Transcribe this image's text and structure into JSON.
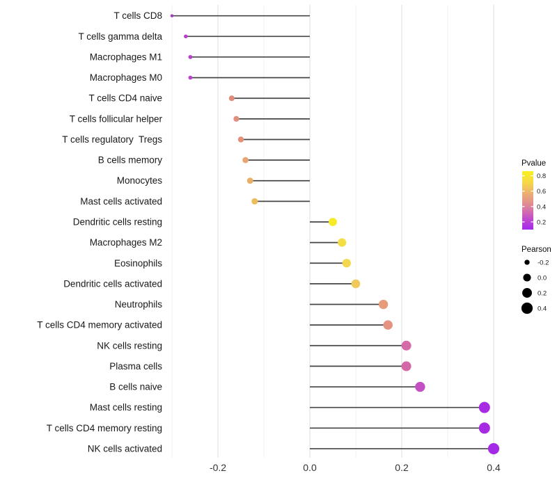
{
  "chart_data": {
    "type": "lollipop",
    "title": "",
    "xlabel": "",
    "ylabel": "",
    "xlim": [
      -0.31,
      0.43
    ],
    "grid": "on",
    "x_major_ticks": {
      "labels": [
        "-0.2",
        "0.0",
        "0.2",
        "0.4"
      ],
      "values": [
        -0.2,
        0.0,
        0.2,
        0.4
      ]
    },
    "x_minor_ticks": {
      "values": [
        -0.3,
        -0.1,
        0.1,
        0.3
      ]
    },
    "rows": [
      {
        "label": "T cells CD8",
        "pearson": -0.3,
        "pvalue": 0.3,
        "color": "#A636BE"
      },
      {
        "label": "T cells gamma delta",
        "pearson": -0.27,
        "pvalue": 0.31,
        "color": "#B83EC9"
      },
      {
        "label": "Macrophages M1",
        "pearson": -0.26,
        "pvalue": 0.31,
        "color": "#B840C9"
      },
      {
        "label": "Macrophages M0",
        "pearson": -0.26,
        "pvalue": 0.32,
        "color": "#BA44CA"
      },
      {
        "label": "T cells CD4 naive",
        "pearson": -0.17,
        "pvalue": 0.55,
        "color": "#E08C7D"
      },
      {
        "label": "T cells follicular helper",
        "pearson": -0.16,
        "pvalue": 0.55,
        "color": "#E18E7B"
      },
      {
        "label": "T cells regulatory  Tregs",
        "pearson": -0.15,
        "pvalue": 0.56,
        "color": "#E29079"
      },
      {
        "label": "B cells memory",
        "pearson": -0.14,
        "pvalue": 0.62,
        "color": "#E8A473"
      },
      {
        "label": "Monocytes",
        "pearson": -0.13,
        "pvalue": 0.66,
        "color": "#EAAF66"
      },
      {
        "label": "Mast cells activated",
        "pearson": -0.12,
        "pvalue": 0.7,
        "color": "#ECBB5C"
      },
      {
        "label": "Dendritic cells resting",
        "pearson": 0.05,
        "pvalue": 0.85,
        "color": "#F6EB28"
      },
      {
        "label": "Macrophages M2",
        "pearson": 0.07,
        "pvalue": 0.79,
        "color": "#F4DE44"
      },
      {
        "label": "Eosinophils",
        "pearson": 0.08,
        "pvalue": 0.77,
        "color": "#F3D84F"
      },
      {
        "label": "Dendritic cells activated",
        "pearson": 0.1,
        "pvalue": 0.73,
        "color": "#F0C95B"
      },
      {
        "label": "Neutrophils",
        "pearson": 0.16,
        "pvalue": 0.58,
        "color": "#E69C7A"
      },
      {
        "label": "T cells CD4 memory activated",
        "pearson": 0.17,
        "pvalue": 0.56,
        "color": "#E59480"
      },
      {
        "label": "NK cells resting",
        "pearson": 0.21,
        "pvalue": 0.45,
        "color": "#D56AA9"
      },
      {
        "label": "Plasma cells",
        "pearson": 0.21,
        "pvalue": 0.45,
        "color": "#D467A8"
      },
      {
        "label": "B cells naive",
        "pearson": 0.24,
        "pvalue": 0.34,
        "color": "#C351C4"
      },
      {
        "label": "Mast cells resting",
        "pearson": 0.38,
        "pvalue": 0.14,
        "color": "#A72BE2"
      },
      {
        "label": "T cells CD4 memory resting",
        "pearson": 0.38,
        "pvalue": 0.14,
        "color": "#A72BE2"
      },
      {
        "label": "NK cells activated",
        "pearson": 0.4,
        "pvalue": 0.12,
        "color": "#A32BE8"
      }
    ],
    "legend_pvalue": {
      "title": "Pvalue",
      "tick_labels": [
        "0.8",
        "0.6",
        "0.4",
        "0.2"
      ],
      "tick_values": [
        0.8,
        0.6,
        0.4,
        0.2
      ],
      "range": [
        0.86,
        0.1
      ],
      "gradient_top_to_bottom": [
        {
          "offset": 0,
          "color": "#F9F021"
        },
        {
          "offset": 0.2,
          "color": "#F5D74A"
        },
        {
          "offset": 0.4,
          "color": "#EBAC76"
        },
        {
          "offset": 0.55,
          "color": "#E18F8E"
        },
        {
          "offset": 0.7,
          "color": "#D26BB2"
        },
        {
          "offset": 0.85,
          "color": "#BB44D2"
        },
        {
          "offset": 1,
          "color": "#A428EE"
        }
      ]
    },
    "legend_pearson": {
      "title": "Pearson",
      "items": [
        {
          "label": "-0.2",
          "value": -0.2
        },
        {
          "label": "0.0",
          "value": 0.0
        },
        {
          "label": "0.2",
          "value": 0.2
        },
        {
          "label": "0.4",
          "value": 0.4
        }
      ],
      "dot_color": "#000000"
    },
    "style_colors": {
      "stem": "#454545",
      "grid_major": "#E3E3E3",
      "grid_minor": "#F1F1F1",
      "background": "#FFFFFF"
    }
  }
}
